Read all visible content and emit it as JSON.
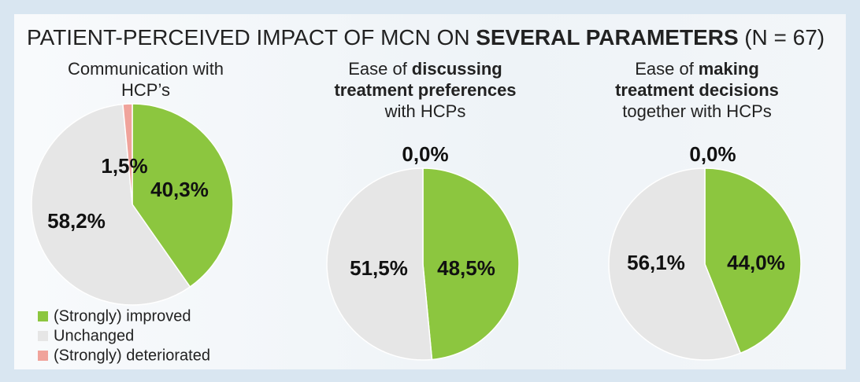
{
  "title": [
    "PATIENT-PERCEIVED IMPACT OF MCN ON",
    {
      "text": "SEVERAL PARAMETERS",
      "bold": true
    },
    "(N = 67)"
  ],
  "chart_data": [
    {
      "type": "pie",
      "title_lines": [
        [
          "Communication with"
        ],
        [
          "HCP’s"
        ]
      ],
      "categories": [
        "(Strongly) improved",
        "Unchanged",
        "(Strongly) deteriorated"
      ],
      "legend": "bottom-left",
      "colors": [
        "#8cc63f",
        "#e6e6e6",
        "#f0a39b"
      ],
      "values": [
        40.3,
        58.2,
        1.5
      ],
      "value_labels": [
        "40,3%",
        "58,2%",
        "1,5%"
      ]
    },
    {
      "type": "pie",
      "title_lines": [
        [
          "Ease of",
          {
            "text": "discussing",
            "bold": true
          }
        ],
        [
          {
            "text": "treatment preferences",
            "bold": true
          }
        ],
        [
          "with HCPs"
        ]
      ],
      "colors": [
        "#8cc63f",
        "#e6e6e6",
        "#f0a39b"
      ],
      "values": [
        48.5,
        51.5,
        0.0
      ],
      "value_labels": [
        "48,5%",
        "51,5%",
        "0,0%"
      ]
    },
    {
      "type": "pie",
      "title_lines": [
        [
          "Ease of",
          {
            "text": "making",
            "bold": true
          }
        ],
        [
          {
            "text": "treatment decisions",
            "bold": true
          }
        ],
        [
          "together with HCPs"
        ]
      ],
      "colors": [
        "#8cc63f",
        "#e6e6e6",
        "#f0a39b"
      ],
      "values": [
        44.0,
        56.1,
        0.0
      ],
      "value_labels": [
        "44,0%",
        "56,1%",
        "0,0%"
      ]
    }
  ]
}
